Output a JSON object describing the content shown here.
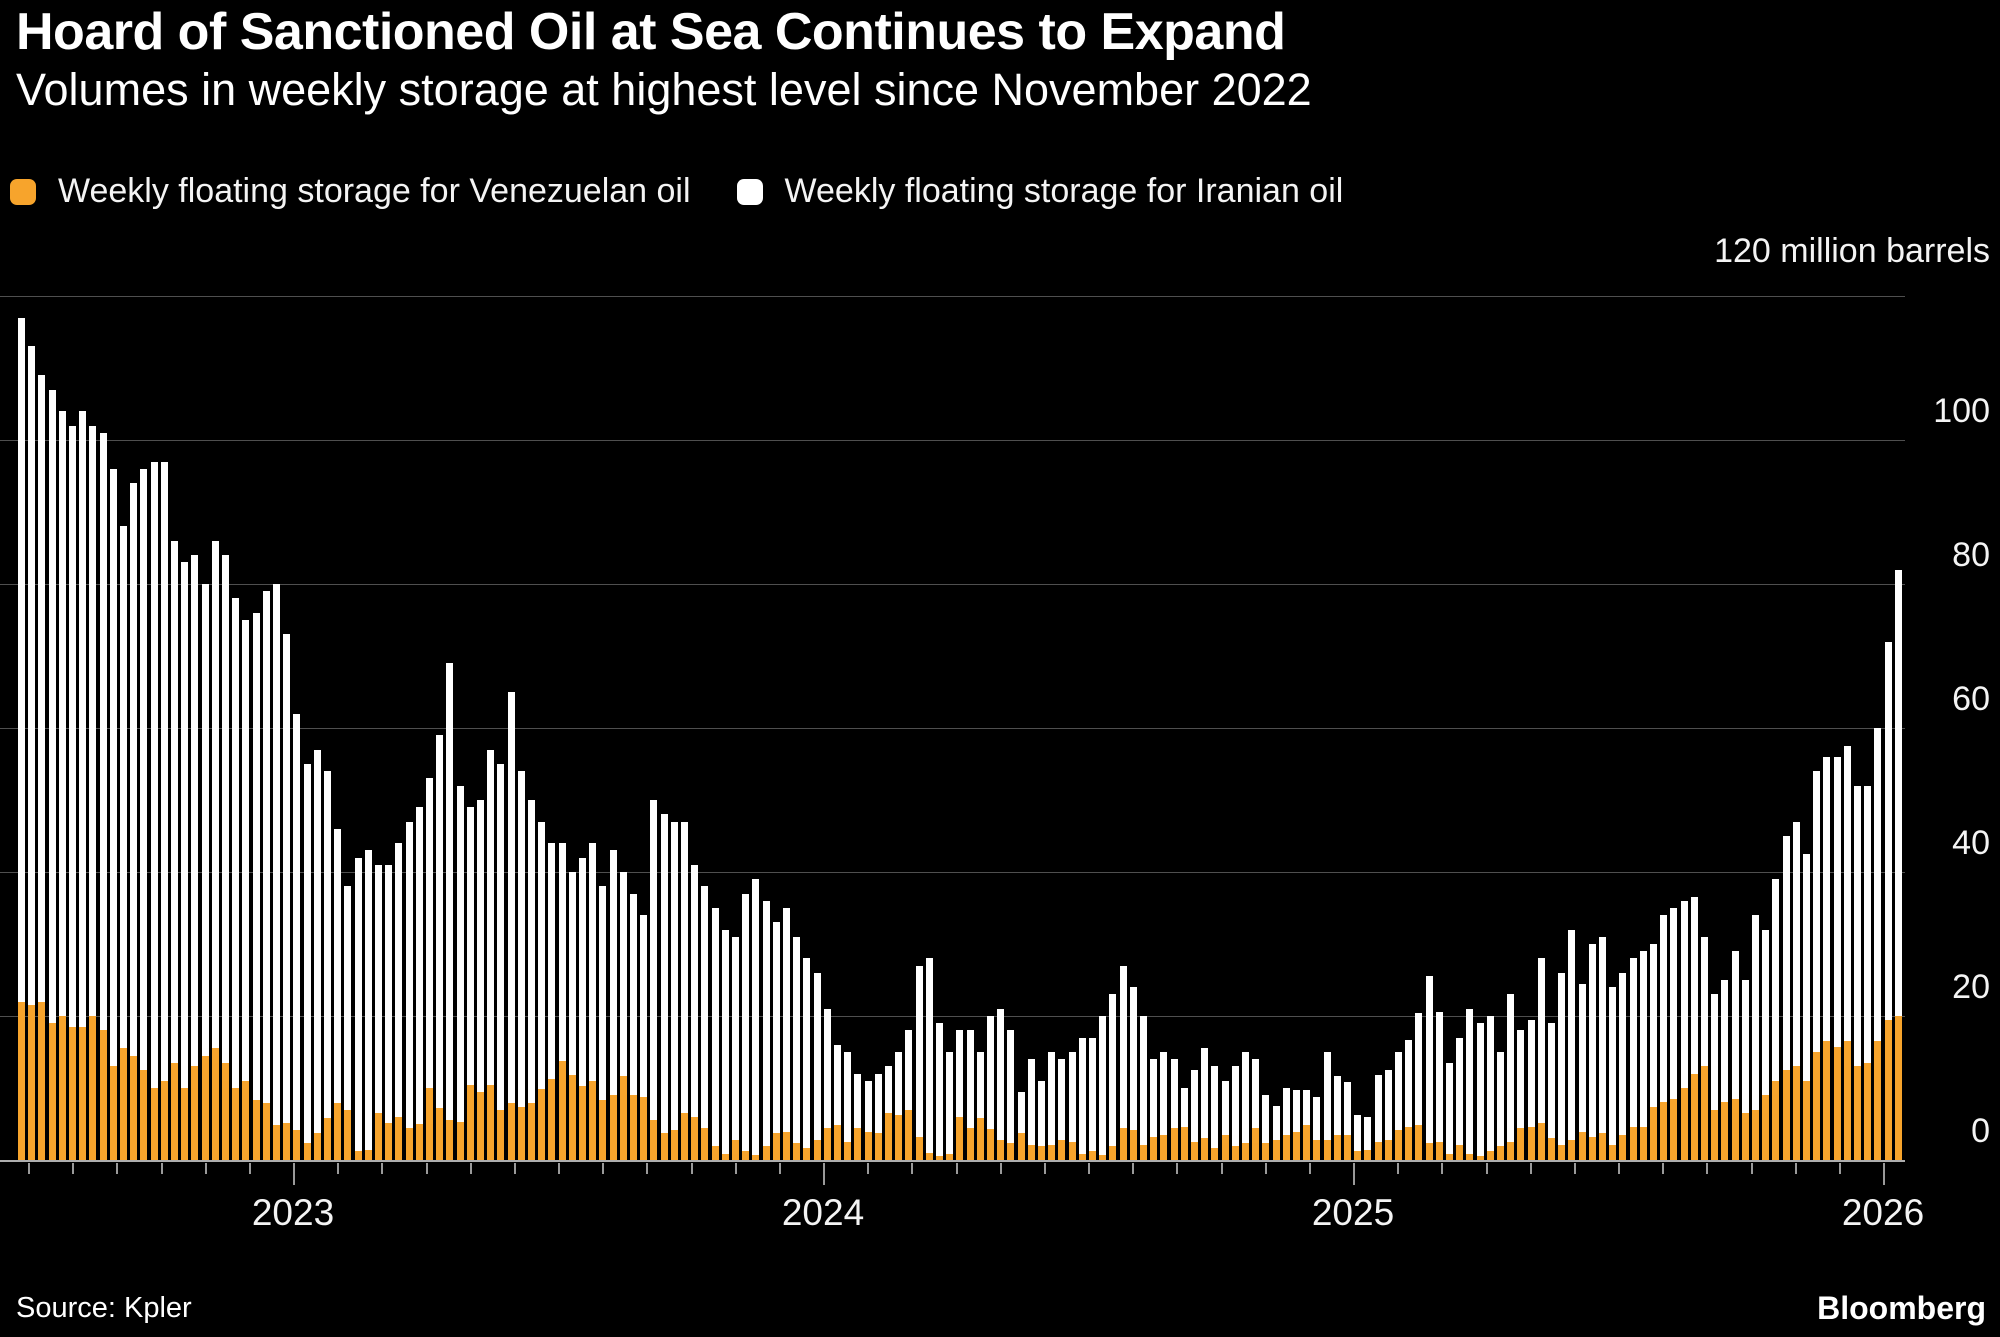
{
  "header": {
    "title": "Hoard of Sanctioned Oil at Sea Continues to Expand",
    "subtitle": "Volumes in weekly storage at highest level since November 2022"
  },
  "legend": [
    {
      "label": "Weekly floating storage for Venezuelan oil",
      "color": "#F7A42C"
    },
    {
      "label": "Weekly floating storage for Iranian oil",
      "color": "#FFFFFF"
    }
  ],
  "axis_note": "120 million barrels",
  "y_axis": {
    "ticks": [
      100,
      80,
      60,
      40,
      20,
      0
    ],
    "max": 120,
    "grid_interval": 20
  },
  "x_axis": {
    "years": [
      "2023",
      "2024",
      "2025",
      "2026"
    ]
  },
  "footer": {
    "source": "Source: Kpler",
    "brand": "Bloomberg"
  },
  "chart_data": {
    "type": "bar",
    "stacked": true,
    "title": "Hoard of Sanctioned Oil at Sea Continues to Expand",
    "subtitle": "Volumes in weekly storage at highest level since November 2022",
    "unit": "million barrels",
    "frequency": "weekly",
    "start_approx": "2022-06-26",
    "end_approx": "2026-01-04",
    "ylim": [
      0,
      120
    ],
    "grid": true,
    "legend_position": "top-left",
    "series": [
      {
        "name": "Weekly floating storage for Venezuelan oil",
        "color": "#F7A42C",
        "values": [
          22,
          21.5,
          22,
          19,
          20,
          18.5,
          18.5,
          20,
          18,
          13,
          15.5,
          14.5,
          12.5,
          10,
          11,
          13.5,
          10,
          13,
          14.5,
          15.5,
          13.5,
          10,
          11,
          8.3,
          7.9,
          4.9,
          5.1,
          4.2,
          2.3,
          3.7,
          5.8,
          7.9,
          6.9,
          1.2,
          1.4,
          6.5,
          5.1,
          6,
          4.4,
          5,
          10,
          7.2,
          5.6,
          5.3,
          10.4,
          9.5,
          10.4,
          6.9,
          7.9,
          7.4,
          7.9,
          9.8,
          11.3,
          13.8,
          11.8,
          10.3,
          11,
          8.3,
          9,
          11.6,
          9,
          8.8,
          5.6,
          3.7,
          4.2,
          6.5,
          6,
          4.4,
          1.9,
          0.9,
          2.8,
          1.2,
          0.7,
          1.9,
          3.7,
          3.9,
          2.3,
          1.6,
          2.8,
          4.4,
          4.9,
          2.5,
          4.4,
          3.9,
          3.7,
          6.5,
          6.3,
          6.9,
          3.2,
          1,
          0.5,
          0.9,
          6,
          4.5,
          5.9,
          4.3,
          2.8,
          2.3,
          3.7,
          2.1,
          1.9,
          2.1,
          2.8,
          2.5,
          0.9,
          1.2,
          0.7,
          1.9,
          4.5,
          4.2,
          2.1,
          3.2,
          3.5,
          4.4,
          4.6,
          2.5,
          3,
          1.6,
          3.5,
          1.9,
          2.3,
          4.5,
          2.3,
          2.8,
          3.5,
          3.9,
          4.9,
          2.8,
          2.8,
          3.5,
          3.5,
          1.2,
          1.4,
          2.5,
          2.8,
          4.2,
          4.6,
          4.9,
          2.3,
          2.5,
          0.9,
          2.1,
          0.9,
          0.5,
          1.2,
          1.9,
          2.5,
          4.4,
          4.6,
          5.1,
          3,
          2.1,
          2.8,
          3.9,
          3.2,
          3.7,
          2.1,
          3.5,
          4.6,
          4.6,
          7.4,
          8,
          8.5,
          10,
          12,
          13,
          7,
          8,
          8.5,
          6.5,
          7,
          9,
          11,
          12.5,
          13,
          11,
          15,
          16.5,
          15.7,
          16.5,
          13,
          13.5,
          16.5,
          19.5,
          20
        ]
      },
      {
        "name": "Weekly floating storage for Iranian oil",
        "color": "#FFFFFF",
        "values": [
          95,
          91.5,
          87,
          88,
          84,
          83.5,
          85.5,
          82,
          83,
          83,
          72.5,
          79.5,
          83.5,
          87,
          86,
          72.5,
          73,
          71,
          65.5,
          70.5,
          70.5,
          68,
          64,
          67.7,
          71.1,
          75.1,
          67.9,
          57.8,
          52.7,
          53.3,
          48.2,
          38.1,
          31.1,
          40.8,
          41.6,
          34.5,
          35.9,
          38,
          42.6,
          44,
          43,
          51.8,
          63.4,
          46.7,
          38.6,
          40.5,
          46.6,
          48.1,
          57.1,
          46.6,
          42.1,
          37.2,
          32.7,
          30.2,
          28.2,
          31.7,
          33,
          29.7,
          34,
          28.4,
          28,
          25.2,
          44.4,
          44.3,
          42.8,
          40.5,
          35,
          33.6,
          33.1,
          31.1,
          28.2,
          35.8,
          38.3,
          34.1,
          29.3,
          31.1,
          28.7,
          26.4,
          23.2,
          16.6,
          11.1,
          12.5,
          7.6,
          7.1,
          8.3,
          6.5,
          8.7,
          11.1,
          23.8,
          27,
          18.5,
          14.1,
          12,
          13.5,
          9.1,
          15.7,
          18.2,
          15.7,
          5.8,
          11.9,
          9.1,
          12.9,
          11.2,
          12.5,
          16.1,
          15.8,
          19.3,
          21.1,
          22.5,
          19.8,
          17.9,
          10.8,
          11.5,
          9.6,
          5.4,
          10,
          12.5,
          11.4,
          7.5,
          11.1,
          12.7,
          9.5,
          6.7,
          4.7,
          6.5,
          5.8,
          4.8,
          6,
          12.2,
          8.1,
          7.4,
          5.1,
          4.6,
          9.3,
          9.7,
          10.8,
          12.1,
          15.5,
          23.2,
          18.1,
          12.6,
          14.9,
          20.1,
          18.5,
          18.8,
          13.1,
          20.5,
          13.6,
          14.9,
          22.9,
          16,
          23.9,
          29.2,
          20.6,
          26.8,
          27.3,
          21.9,
          22.5,
          23.4,
          24.4,
          22.6,
          26,
          26.5,
          26,
          24.5,
          18,
          16,
          17,
          20.5,
          18.5,
          27,
          23,
          28,
          32.5,
          34,
          31.5,
          39,
          39.5,
          40.3,
          41,
          39,
          38.5,
          43.5,
          52.5,
          62
        ]
      }
    ]
  }
}
